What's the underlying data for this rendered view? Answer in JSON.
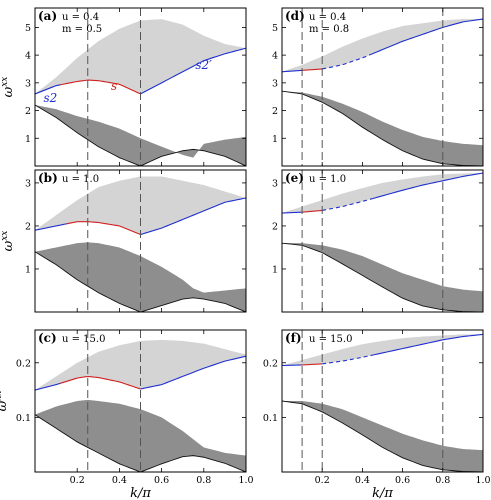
{
  "colors": {
    "light_band": "#d4d4d4",
    "dark_band": "#8e8e8e",
    "blue": "#1f2fd0",
    "red": "#d01f1f",
    "black": "#111111",
    "dash_line": "#555555"
  },
  "x_axis_label": "k/π",
  "y_axis_label": "ω",
  "y_axis_superscript": "xx",
  "chart_data": [
    {
      "type": "area",
      "panel": "(a)",
      "params": [
        "u = 0.4",
        "m = 0.5"
      ],
      "xlim": [
        0,
        1
      ],
      "ylim": [
        0,
        5.7
      ],
      "yticks": [
        1,
        2,
        3,
        4,
        5
      ],
      "xticks": [
        0.2,
        0.4,
        0.6,
        0.8,
        1.0
      ],
      "xtick_labels_visible": false,
      "vlines": [
        0.25,
        0.5
      ],
      "curve_labels": [
        {
          "text": "s2",
          "color": "blue",
          "x": 0.04,
          "y": 2.3
        },
        {
          "text": "s",
          "color": "red",
          "x": 0.36,
          "y": 2.75
        },
        {
          "text": "s2′",
          "color": "blue",
          "x": 0.76,
          "y": 3.5
        }
      ],
      "upper_band": {
        "x": [
          0,
          0.1,
          0.2,
          0.25,
          0.3,
          0.4,
          0.5,
          0.6,
          0.7,
          0.8,
          0.9,
          1.0
        ],
        "top": [
          2.6,
          3.2,
          3.9,
          4.2,
          4.5,
          4.95,
          5.25,
          5.3,
          5.1,
          4.7,
          4.4,
          4.25
        ],
        "bottom": [
          2.6,
          2.9,
          3.05,
          3.1,
          3.08,
          2.95,
          2.6,
          3.0,
          3.4,
          3.8,
          4.05,
          4.25
        ]
      },
      "bottom_curve": {
        "x": [
          0,
          0.1,
          0.2,
          0.25,
          0.3,
          0.4,
          0.5,
          0.6,
          0.7,
          0.8,
          0.9,
          1.0
        ],
        "y": [
          2.6,
          2.9,
          3.05,
          3.1,
          3.08,
          2.95,
          2.6,
          3.0,
          3.4,
          3.8,
          4.05,
          4.25
        ],
        "red_range": [
          0.12,
          0.5
        ]
      },
      "lower_band": {
        "x": [
          0,
          0.1,
          0.2,
          0.25,
          0.3,
          0.4,
          0.5,
          0.6,
          0.7,
          0.75,
          0.8,
          0.9,
          1.0
        ],
        "top": [
          2.2,
          2.05,
          1.8,
          1.7,
          1.6,
          1.35,
          1.0,
          0.7,
          0.4,
          0.3,
          0.8,
          0.95,
          1.05
        ],
        "bottom": [
          2.2,
          1.75,
          1.2,
          0.95,
          0.7,
          0.3,
          0.0,
          0.35,
          0.55,
          0.6,
          0.55,
          0.35,
          0.0
        ]
      }
    },
    {
      "type": "area",
      "panel": "(b)",
      "params": [
        "u = 1.0"
      ],
      "xlim": [
        0,
        1
      ],
      "ylim": [
        0,
        3.3
      ],
      "yticks": [
        1,
        2,
        3
      ],
      "xticks": [
        0.2,
        0.4,
        0.6,
        0.8,
        1.0
      ],
      "xtick_labels_visible": false,
      "vlines": [
        0.25,
        0.5
      ],
      "upper_band": {
        "x": [
          0,
          0.1,
          0.2,
          0.25,
          0.3,
          0.4,
          0.5,
          0.6,
          0.7,
          0.8,
          0.9,
          1.0
        ],
        "top": [
          1.9,
          2.25,
          2.6,
          2.75,
          2.9,
          3.05,
          3.15,
          3.15,
          3.05,
          2.95,
          2.8,
          2.65
        ],
        "bottom": [
          1.9,
          2.0,
          2.1,
          2.1,
          2.08,
          2.0,
          1.8,
          1.95,
          2.15,
          2.35,
          2.55,
          2.65
        ]
      },
      "bottom_curve": {
        "x": [
          0,
          0.1,
          0.2,
          0.25,
          0.3,
          0.4,
          0.5,
          0.6,
          0.7,
          0.8,
          0.9,
          1.0
        ],
        "y": [
          1.9,
          2.0,
          2.1,
          2.1,
          2.08,
          2.0,
          1.8,
          1.95,
          2.15,
          2.35,
          2.55,
          2.65
        ],
        "red_range": [
          0.15,
          0.5
        ]
      },
      "lower_band": {
        "x": [
          0,
          0.1,
          0.2,
          0.25,
          0.3,
          0.4,
          0.5,
          0.6,
          0.7,
          0.75,
          0.8,
          0.9,
          1.0
        ],
        "top": [
          1.4,
          1.5,
          1.6,
          1.62,
          1.6,
          1.5,
          1.3,
          1.05,
          0.75,
          0.55,
          0.45,
          0.5,
          0.55
        ],
        "bottom": [
          1.4,
          1.1,
          0.75,
          0.6,
          0.45,
          0.2,
          0.0,
          0.15,
          0.3,
          0.33,
          0.3,
          0.2,
          0.0
        ]
      }
    },
    {
      "type": "area",
      "panel": "(c)",
      "params": [
        "u = 15.0"
      ],
      "xlim": [
        0,
        1
      ],
      "ylim": [
        0,
        0.26
      ],
      "yticks": [
        0.1,
        0.2
      ],
      "xticks": [
        0.2,
        0.4,
        0.6,
        0.8,
        1.0
      ],
      "xtick_labels_visible": true,
      "vlines": [
        0.25,
        0.5
      ],
      "upper_band": {
        "x": [
          0,
          0.1,
          0.2,
          0.25,
          0.3,
          0.4,
          0.5,
          0.6,
          0.7,
          0.8,
          0.9,
          1.0
        ],
        "top": [
          0.15,
          0.175,
          0.2,
          0.21,
          0.22,
          0.232,
          0.24,
          0.242,
          0.24,
          0.235,
          0.225,
          0.215
        ],
        "bottom": [
          0.15,
          0.16,
          0.172,
          0.175,
          0.173,
          0.165,
          0.152,
          0.16,
          0.175,
          0.19,
          0.203,
          0.212
        ]
      },
      "bottom_curve": {
        "x": [
          0,
          0.1,
          0.2,
          0.25,
          0.3,
          0.4,
          0.5,
          0.6,
          0.7,
          0.8,
          0.9,
          1.0
        ],
        "y": [
          0.15,
          0.16,
          0.172,
          0.175,
          0.173,
          0.165,
          0.152,
          0.16,
          0.175,
          0.19,
          0.203,
          0.212
        ],
        "red_range": [
          0.12,
          0.5
        ]
      },
      "lower_band": {
        "x": [
          0,
          0.1,
          0.2,
          0.25,
          0.3,
          0.4,
          0.5,
          0.6,
          0.7,
          0.75,
          0.8,
          0.9,
          1.0
        ],
        "top": [
          0.105,
          0.12,
          0.13,
          0.132,
          0.13,
          0.125,
          0.115,
          0.1,
          0.075,
          0.06,
          0.045,
          0.035,
          0.03
        ],
        "bottom": [
          0.105,
          0.08,
          0.055,
          0.045,
          0.035,
          0.015,
          0.0,
          0.015,
          0.028,
          0.03,
          0.027,
          0.016,
          0.0
        ]
      }
    },
    {
      "type": "area",
      "panel": "(d)",
      "params": [
        "u = 0.4",
        "m = 0.8"
      ],
      "xlim": [
        0,
        1
      ],
      "ylim": [
        0,
        5.7
      ],
      "yticks": [
        1,
        2,
        3,
        4,
        5
      ],
      "xticks": [
        0.2,
        0.4,
        0.6,
        0.8,
        1.0
      ],
      "xtick_labels_visible": false,
      "vlines": [
        0.1,
        0.2,
        0.8
      ],
      "upper_band": {
        "x": [
          0,
          0.1,
          0.2,
          0.3,
          0.4,
          0.5,
          0.6,
          0.7,
          0.8,
          0.9,
          1.0
        ],
        "top": [
          3.4,
          3.65,
          3.95,
          4.3,
          4.6,
          4.85,
          5.05,
          5.15,
          5.25,
          5.3,
          5.3
        ],
        "bottom": [
          3.4,
          3.45,
          3.5,
          3.65,
          3.9,
          4.2,
          4.5,
          4.75,
          5.0,
          5.2,
          5.3
        ]
      },
      "bottom_curve": {
        "x": [
          0,
          0.1,
          0.2,
          0.3,
          0.4,
          0.5,
          0.6,
          0.7,
          0.8,
          0.9,
          1.0
        ],
        "y": [
          3.4,
          3.45,
          3.5,
          3.65,
          3.9,
          4.2,
          4.5,
          4.75,
          5.0,
          5.2,
          5.3
        ],
        "red_range": [
          0.1,
          0.2
        ],
        "dashed_range": [
          0.2,
          0.45
        ]
      },
      "lower_band": {
        "x": [
          0,
          0.1,
          0.2,
          0.3,
          0.4,
          0.5,
          0.6,
          0.7,
          0.8,
          0.9,
          1.0
        ],
        "top": [
          2.7,
          2.65,
          2.5,
          2.25,
          1.95,
          1.6,
          1.3,
          1.05,
          0.9,
          0.8,
          0.75
        ],
        "bottom": [
          2.7,
          2.6,
          2.3,
          1.9,
          1.4,
          0.95,
          0.55,
          0.25,
          0.08,
          0.02,
          0.0
        ]
      }
    },
    {
      "type": "area",
      "panel": "(e)",
      "params": [
        "u = 1.0"
      ],
      "xlim": [
        0,
        1
      ],
      "ylim": [
        0,
        3.3
      ],
      "yticks": [
        1,
        2,
        3
      ],
      "xticks": [
        0.2,
        0.4,
        0.6,
        0.8,
        1.0
      ],
      "xtick_labels_visible": false,
      "vlines": [
        0.1,
        0.2,
        0.8
      ],
      "upper_band": {
        "x": [
          0,
          0.1,
          0.2,
          0.3,
          0.4,
          0.5,
          0.6,
          0.7,
          0.8,
          0.9,
          1.0
        ],
        "top": [
          2.3,
          2.45,
          2.6,
          2.75,
          2.88,
          3.0,
          3.08,
          3.15,
          3.2,
          3.22,
          3.23
        ],
        "bottom": [
          2.3,
          2.32,
          2.36,
          2.45,
          2.57,
          2.7,
          2.83,
          2.95,
          3.05,
          3.15,
          3.23
        ]
      },
      "bottom_curve": {
        "x": [
          0,
          0.1,
          0.2,
          0.3,
          0.4,
          0.5,
          0.6,
          0.7,
          0.8,
          0.9,
          1.0
        ],
        "y": [
          2.3,
          2.32,
          2.36,
          2.45,
          2.57,
          2.7,
          2.83,
          2.95,
          3.05,
          3.15,
          3.23
        ],
        "red_range": [
          0.1,
          0.2
        ],
        "dashed_range": [
          0.2,
          0.45
        ]
      },
      "lower_band": {
        "x": [
          0,
          0.1,
          0.2,
          0.3,
          0.4,
          0.5,
          0.6,
          0.7,
          0.8,
          0.9,
          1.0
        ],
        "top": [
          1.6,
          1.6,
          1.55,
          1.45,
          1.3,
          1.1,
          0.9,
          0.75,
          0.6,
          0.52,
          0.48
        ],
        "bottom": [
          1.6,
          1.55,
          1.38,
          1.12,
          0.85,
          0.58,
          0.32,
          0.14,
          0.05,
          0.01,
          0.0
        ]
      }
    },
    {
      "type": "area",
      "panel": "(f)",
      "params": [
        "u = 15.0"
      ],
      "xlim": [
        0,
        1
      ],
      "ylim": [
        0,
        0.26
      ],
      "yticks": [
        0.1,
        0.2
      ],
      "xticks": [
        0.2,
        0.4,
        0.6,
        0.8,
        1.0
      ],
      "xtick_labels_visible": true,
      "vlines": [
        0.1,
        0.2,
        0.8
      ],
      "upper_band": {
        "x": [
          0,
          0.1,
          0.2,
          0.3,
          0.4,
          0.5,
          0.6,
          0.7,
          0.8,
          0.9,
          1.0
        ],
        "top": [
          0.195,
          0.205,
          0.215,
          0.225,
          0.234,
          0.24,
          0.245,
          0.248,
          0.25,
          0.252,
          0.252
        ],
        "bottom": [
          0.195,
          0.196,
          0.198,
          0.203,
          0.21,
          0.218,
          0.226,
          0.234,
          0.242,
          0.248,
          0.252
        ]
      },
      "bottom_curve": {
        "x": [
          0,
          0.1,
          0.2,
          0.3,
          0.4,
          0.5,
          0.6,
          0.7,
          0.8,
          0.9,
          1.0
        ],
        "y": [
          0.195,
          0.196,
          0.198,
          0.203,
          0.21,
          0.218,
          0.226,
          0.234,
          0.242,
          0.248,
          0.252
        ],
        "red_range": [
          0.1,
          0.2
        ],
        "dashed_range": [
          0.2,
          0.45
        ]
      },
      "lower_band": {
        "x": [
          0,
          0.1,
          0.2,
          0.3,
          0.4,
          0.5,
          0.6,
          0.7,
          0.8,
          0.9,
          1.0
        ],
        "top": [
          0.13,
          0.13,
          0.125,
          0.115,
          0.1,
          0.085,
          0.07,
          0.058,
          0.048,
          0.042,
          0.04
        ],
        "bottom": [
          0.13,
          0.125,
          0.11,
          0.09,
          0.068,
          0.045,
          0.026,
          0.012,
          0.004,
          0.001,
          0.0
        ]
      }
    }
  ]
}
